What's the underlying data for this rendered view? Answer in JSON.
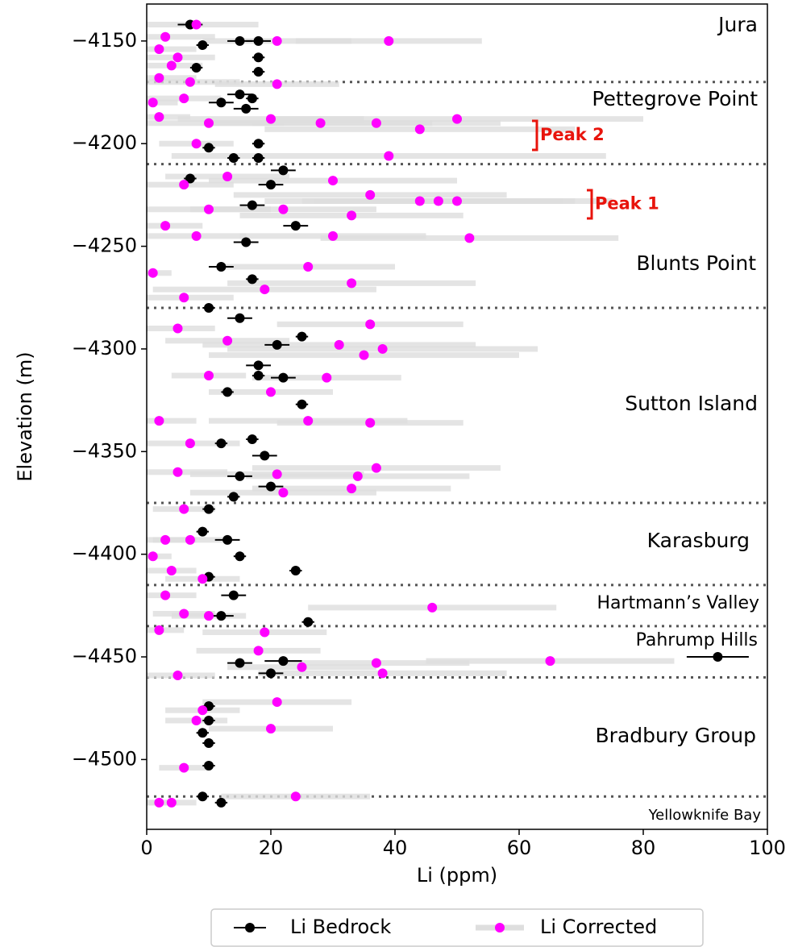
{
  "chart_data": {
    "type": "scatter",
    "xlabel": "Li (ppm)",
    "ylabel": "Elevation (m)",
    "xlim": [
      0,
      100
    ],
    "xticks": [
      0,
      20,
      40,
      60,
      80,
      100
    ],
    "ylim": [
      -4534,
      -4132
    ],
    "yticks": [
      {
        "value": -4150,
        "label": "−4150"
      },
      {
        "value": -4200,
        "label": "−4200"
      },
      {
        "value": -4250,
        "label": "−4250"
      },
      {
        "value": -4300,
        "label": "−4300"
      },
      {
        "value": -4350,
        "label": "−4350"
      },
      {
        "value": -4400,
        "label": "−4400"
      },
      {
        "value": -4450,
        "label": "−4450"
      },
      {
        "value": -4500,
        "label": "−4500"
      }
    ],
    "boundaries": [
      -4170,
      -4210,
      -4280,
      -4375,
      -4415,
      -4435,
      -4460,
      -4518
    ],
    "regions": [
      "Jura",
      "Pettegrove Point",
      "Blunts Point",
      "Sutton Island",
      "Karasburg",
      "Hartmann’s Valley",
      "Pahrump Hills",
      "Bradbury Group",
      "Yellowknife Bay"
    ],
    "annotations": [
      "Peak 2",
      "Peak 1"
    ],
    "annotation_color": "#e8140c",
    "legend": "bottom",
    "series": [
      {
        "name": "Li Bedrock",
        "color": "#000000",
        "x": [
          7,
          18,
          15,
          9,
          18,
          18,
          8,
          15,
          12,
          16,
          17,
          10,
          14,
          18,
          18,
          22,
          7,
          20,
          17,
          24,
          16,
          12,
          17,
          10,
          15,
          25,
          21,
          18,
          18,
          22,
          13,
          25,
          12,
          17,
          19,
          15,
          20,
          14,
          10,
          9,
          13,
          15,
          24,
          10,
          14,
          12,
          26,
          22,
          92,
          20,
          15,
          10,
          10,
          9,
          10,
          10,
          9,
          12
        ],
        "y": [
          -4142,
          -4150,
          -4150,
          -4152,
          -4158,
          -4165,
          -4163,
          -4176,
          -4180,
          -4183,
          -4178,
          -4202,
          -4207,
          -4207,
          -4200,
          -4213,
          -4217,
          -4220,
          -4230,
          -4240,
          -4248,
          -4260,
          -4266,
          -4280,
          -4285,
          -4294,
          -4298,
          -4308,
          -4313,
          -4314,
          -4321,
          -4327,
          -4346,
          -4344,
          -4352,
          -4362,
          -4367,
          -4372,
          -4378,
          -4389,
          -4393,
          -4401,
          -4408,
          -4411,
          -4420,
          -4430,
          -4433,
          -4452,
          -4450,
          -4458,
          -4453,
          -4474,
          -4481,
          -4487,
          -4492,
          -4503,
          -4518,
          -4521
        ],
        "xerr": [
          2,
          2,
          2,
          1,
          1,
          1,
          1,
          2,
          2,
          2,
          1,
          1,
          1,
          1,
          1,
          2,
          1,
          2,
          2,
          2,
          2,
          2,
          1,
          1,
          2,
          1,
          2,
          2,
          1,
          2,
          1,
          1,
          1,
          1,
          2,
          2,
          2,
          1,
          1,
          1,
          2,
          1,
          1,
          1,
          2,
          2,
          1,
          3,
          5,
          2,
          2,
          1,
          1,
          1,
          1,
          1,
          1,
          1
        ]
      },
      {
        "name": "Li Corrected",
        "color": "#ff00ff",
        "band_color": "#dedede",
        "x": [
          8,
          3,
          21,
          39,
          2,
          5,
          4,
          2,
          7,
          21,
          1,
          6,
          2,
          10,
          20,
          28,
          37,
          44,
          50,
          8,
          39,
          13,
          6,
          30,
          36,
          44,
          47,
          50,
          10,
          22,
          33,
          3,
          52,
          8,
          30,
          26,
          1,
          33,
          19,
          6,
          36,
          5,
          13,
          31,
          35,
          38,
          10,
          29,
          20,
          36,
          26,
          2,
          7,
          5,
          22,
          34,
          37,
          33,
          21,
          6,
          3,
          7,
          1,
          4,
          9,
          3,
          46,
          6,
          2,
          19,
          10,
          18,
          37,
          65,
          25,
          38,
          5,
          21,
          20,
          9,
          8,
          6,
          24,
          4,
          2
        ],
        "y": [
          -4142,
          -4148,
          -4150,
          -4150,
          -4154,
          -4158,
          -4162,
          -4168,
          -4170,
          -4171,
          -4180,
          -4178,
          -4187,
          -4190,
          -4188,
          -4190,
          -4190,
          -4193,
          -4188,
          -4200,
          -4206,
          -4216,
          -4220,
          -4218,
          -4225,
          -4228,
          -4228,
          -4228,
          -4232,
          -4232,
          -4235,
          -4240,
          -4246,
          -4245,
          -4245,
          -4260,
          -4263,
          -4268,
          -4271,
          -4275,
          -4288,
          -4290,
          -4296,
          -4298,
          -4303,
          -4300,
          -4313,
          -4314,
          -4321,
          -4336,
          -4335,
          -4335,
          -4346,
          -4360,
          -4370,
          -4362,
          -4358,
          -4368,
          -4361,
          -4378,
          -4393,
          -4393,
          -4401,
          -4408,
          -4412,
          -4420,
          -4426,
          -4429,
          -4437,
          -4438,
          -4430,
          -4447,
          -4453,
          -4452,
          -4455,
          -4458,
          -4459,
          -4472,
          -4485,
          -4476,
          -4481,
          -4504,
          -4518,
          -4521,
          -4521
        ],
        "xerr": [
          10,
          8,
          12,
          15,
          6,
          6,
          5,
          6,
          8,
          10,
          4,
          6,
          5,
          12,
          15,
          18,
          20,
          25,
          30,
          6,
          35,
          10,
          8,
          20,
          22,
          25,
          20,
          25,
          10,
          15,
          18,
          6,
          24,
          8,
          15,
          14,
          3,
          20,
          18,
          8,
          15,
          6,
          10,
          22,
          25,
          25,
          6,
          12,
          10,
          15,
          16,
          6,
          8,
          8,
          15,
          18,
          20,
          16,
          14,
          5,
          5,
          6,
          3,
          4,
          6,
          5,
          20,
          5,
          4,
          10,
          6,
          10,
          15,
          20,
          12,
          20,
          6,
          12,
          10,
          6,
          5,
          4,
          12,
          4,
          3
        ]
      }
    ]
  }
}
